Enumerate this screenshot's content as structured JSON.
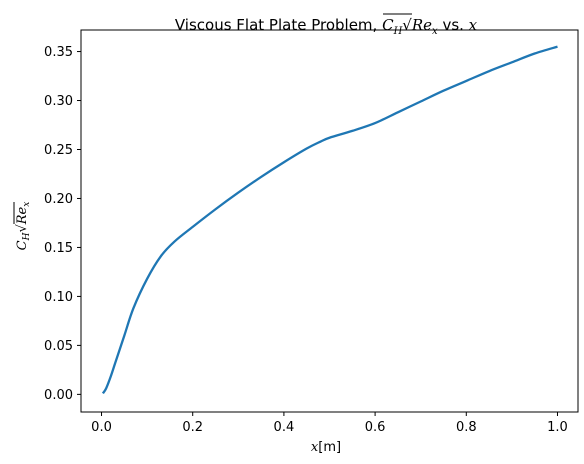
{
  "chart_data": {
    "type": "line",
    "title": {
      "prefix": "Viscous Flat Plate Problem, ",
      "C": "C",
      "H": "H",
      "Re": "Re",
      "x_sub": "x",
      "mid": " vs. ",
      "x": "x"
    },
    "xlabel": {
      "x": "x",
      "unit": "[m]"
    },
    "ylabel": {
      "C": "C",
      "H": "H",
      "Re": "Re",
      "x_sub": "x"
    },
    "xlim": [
      -0.045,
      1.045
    ],
    "ylim": [
      -0.018,
      0.372
    ],
    "xticks": [
      0.0,
      0.2,
      0.4,
      0.6,
      0.8,
      1.0
    ],
    "xtick_labels": [
      "0.0",
      "0.2",
      "0.4",
      "0.6",
      "0.8",
      "1.0"
    ],
    "yticks": [
      0.0,
      0.05,
      0.1,
      0.15,
      0.2,
      0.25,
      0.3,
      0.35
    ],
    "ytick_labels": [
      "0.00",
      "0.05",
      "0.10",
      "0.15",
      "0.20",
      "0.25",
      "0.30",
      "0.35"
    ],
    "grid": false,
    "series": [
      {
        "color": "#1f77b4",
        "x": [
          0.003,
          0.01,
          0.02,
          0.03,
          0.05,
          0.07,
          0.1,
          0.13,
          0.16,
          0.2,
          0.25,
          0.3,
          0.35,
          0.4,
          0.45,
          0.48,
          0.5,
          0.55,
          0.6,
          0.65,
          0.7,
          0.75,
          0.8,
          0.85,
          0.9,
          0.95,
          1.0
        ],
        "y": [
          0.001,
          0.006,
          0.018,
          0.032,
          0.06,
          0.088,
          0.118,
          0.141,
          0.156,
          0.171,
          0.189,
          0.206,
          0.222,
          0.237,
          0.251,
          0.258,
          0.262,
          0.269,
          0.277,
          0.288,
          0.299,
          0.31,
          0.32,
          0.33,
          0.339,
          0.348,
          0.355
        ]
      }
    ]
  }
}
